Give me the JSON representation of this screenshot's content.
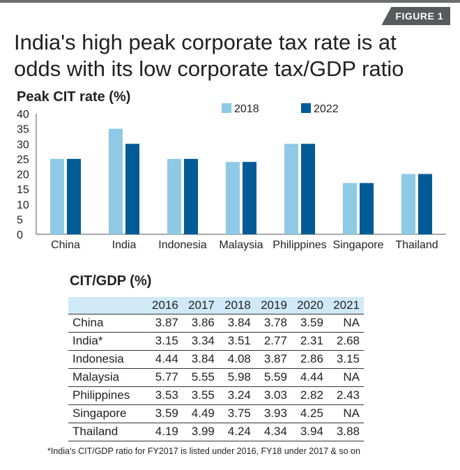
{
  "figure_tag": "FIGURE 1",
  "title_line1": "India's high peak corporate tax rate is at",
  "title_line2": "odds with its low corporate tax/GDP ratio",
  "colors": {
    "series_2018": "#8ecae6",
    "series_2022": "#005b96",
    "table_header": "#cfe9f7"
  },
  "chart_data": {
    "type": "bar",
    "title": "Peak CIT rate (%)",
    "categories": [
      "China",
      "India",
      "Indonesia",
      "Malaysia",
      "Philippines",
      "Singapore",
      "Thailand"
    ],
    "series": [
      {
        "name": "2018",
        "values": [
          25,
          35,
          25,
          24,
          30,
          17,
          20
        ]
      },
      {
        "name": "2022",
        "values": [
          25,
          30,
          25,
          24,
          30,
          17,
          20
        ]
      }
    ],
    "ylim": [
      0,
      40
    ],
    "yticks": [
      0,
      5,
      10,
      15,
      20,
      25,
      30,
      35,
      40
    ],
    "legend": "top",
    "grid": false
  },
  "table": {
    "title": "CIT/GDP (%)",
    "columns": [
      "",
      "2016",
      "2017",
      "2018",
      "2019",
      "2020",
      "2021"
    ],
    "rows": [
      [
        "China",
        "3.87",
        "3.86",
        "3.84",
        "3.78",
        "3.59",
        "NA"
      ],
      [
        "India*",
        "3.15",
        "3.34",
        "3.51",
        "2.77",
        "2.31",
        "2.68"
      ],
      [
        "Indonesia",
        "4.44",
        "3.84",
        "4.08",
        "3.87",
        "2.86",
        "3.15"
      ],
      [
        "Malaysia",
        "5.77",
        "5.55",
        "5.98",
        "5.59",
        "4.44",
        "NA"
      ],
      [
        "Philippines",
        "3.53",
        "3.55",
        "3.24",
        "3.03",
        "2.82",
        "2.43"
      ],
      [
        "Singapore",
        "3.59",
        "4.49",
        "3.75",
        "3.93",
        "4.25",
        "NA"
      ],
      [
        "Thailand",
        "4.19",
        "3.99",
        "4.24",
        "4.34",
        "3.94",
        "3.88"
      ]
    ]
  },
  "footnote": "*India's CIT/GDP ratio for FY2017 is listed under 2016, FY18 under 2017 & so on"
}
